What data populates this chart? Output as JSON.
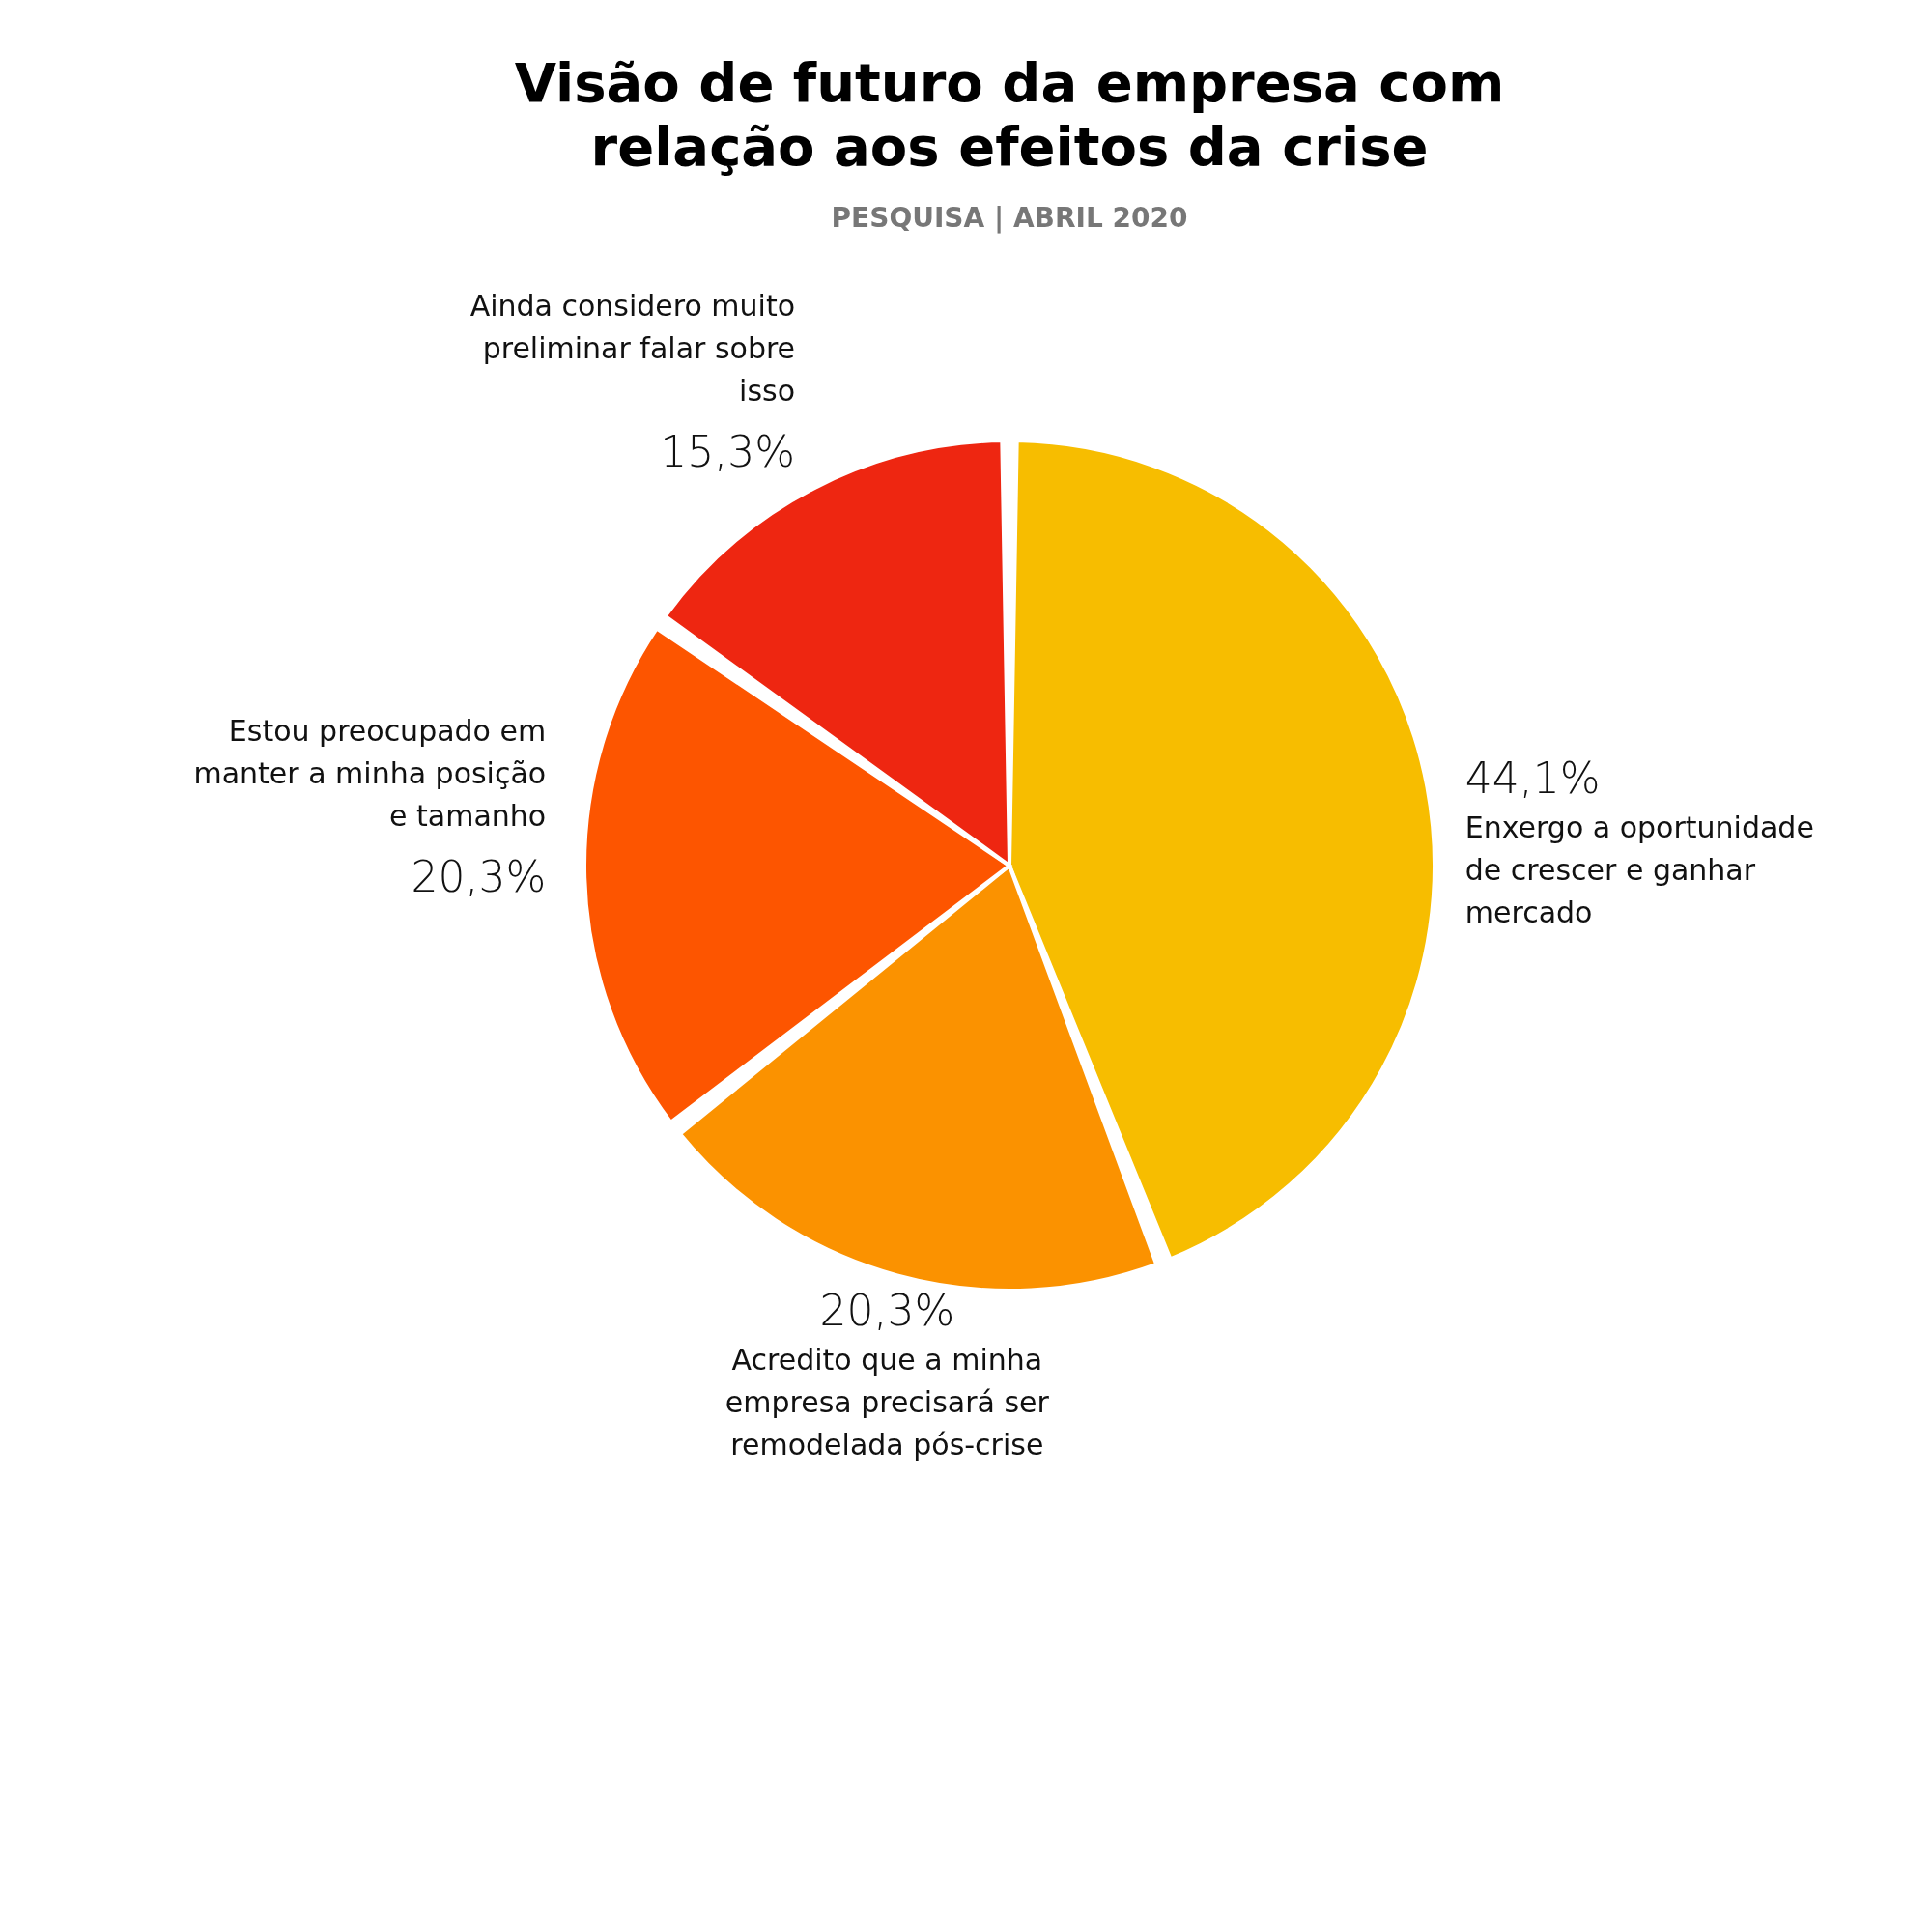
{
  "chart_data": {
    "type": "pie",
    "title": "Visão de futuro da empresa com relação aos efeitos da crise",
    "subtitle": "PESQUISA | ABRIL 2020",
    "categories": [
      "Enxergo a oportunidade de crescer e ganhar mercado",
      "Acredito que a minha empresa precisará ser remodelada pós-crise",
      "Estou preocupado em manter a minha posição e tamanho",
      "Ainda considero muito preliminar falar sobre isso"
    ],
    "values": [
      44.1,
      20.3,
      20.3,
      15.3
    ],
    "colors": [
      "#f7bd00",
      "#fb9200",
      "#fd5500",
      "#ee2611"
    ],
    "value_labels": [
      "44,1%",
      "20,3%",
      "20,3%",
      "15,3%"
    ]
  }
}
